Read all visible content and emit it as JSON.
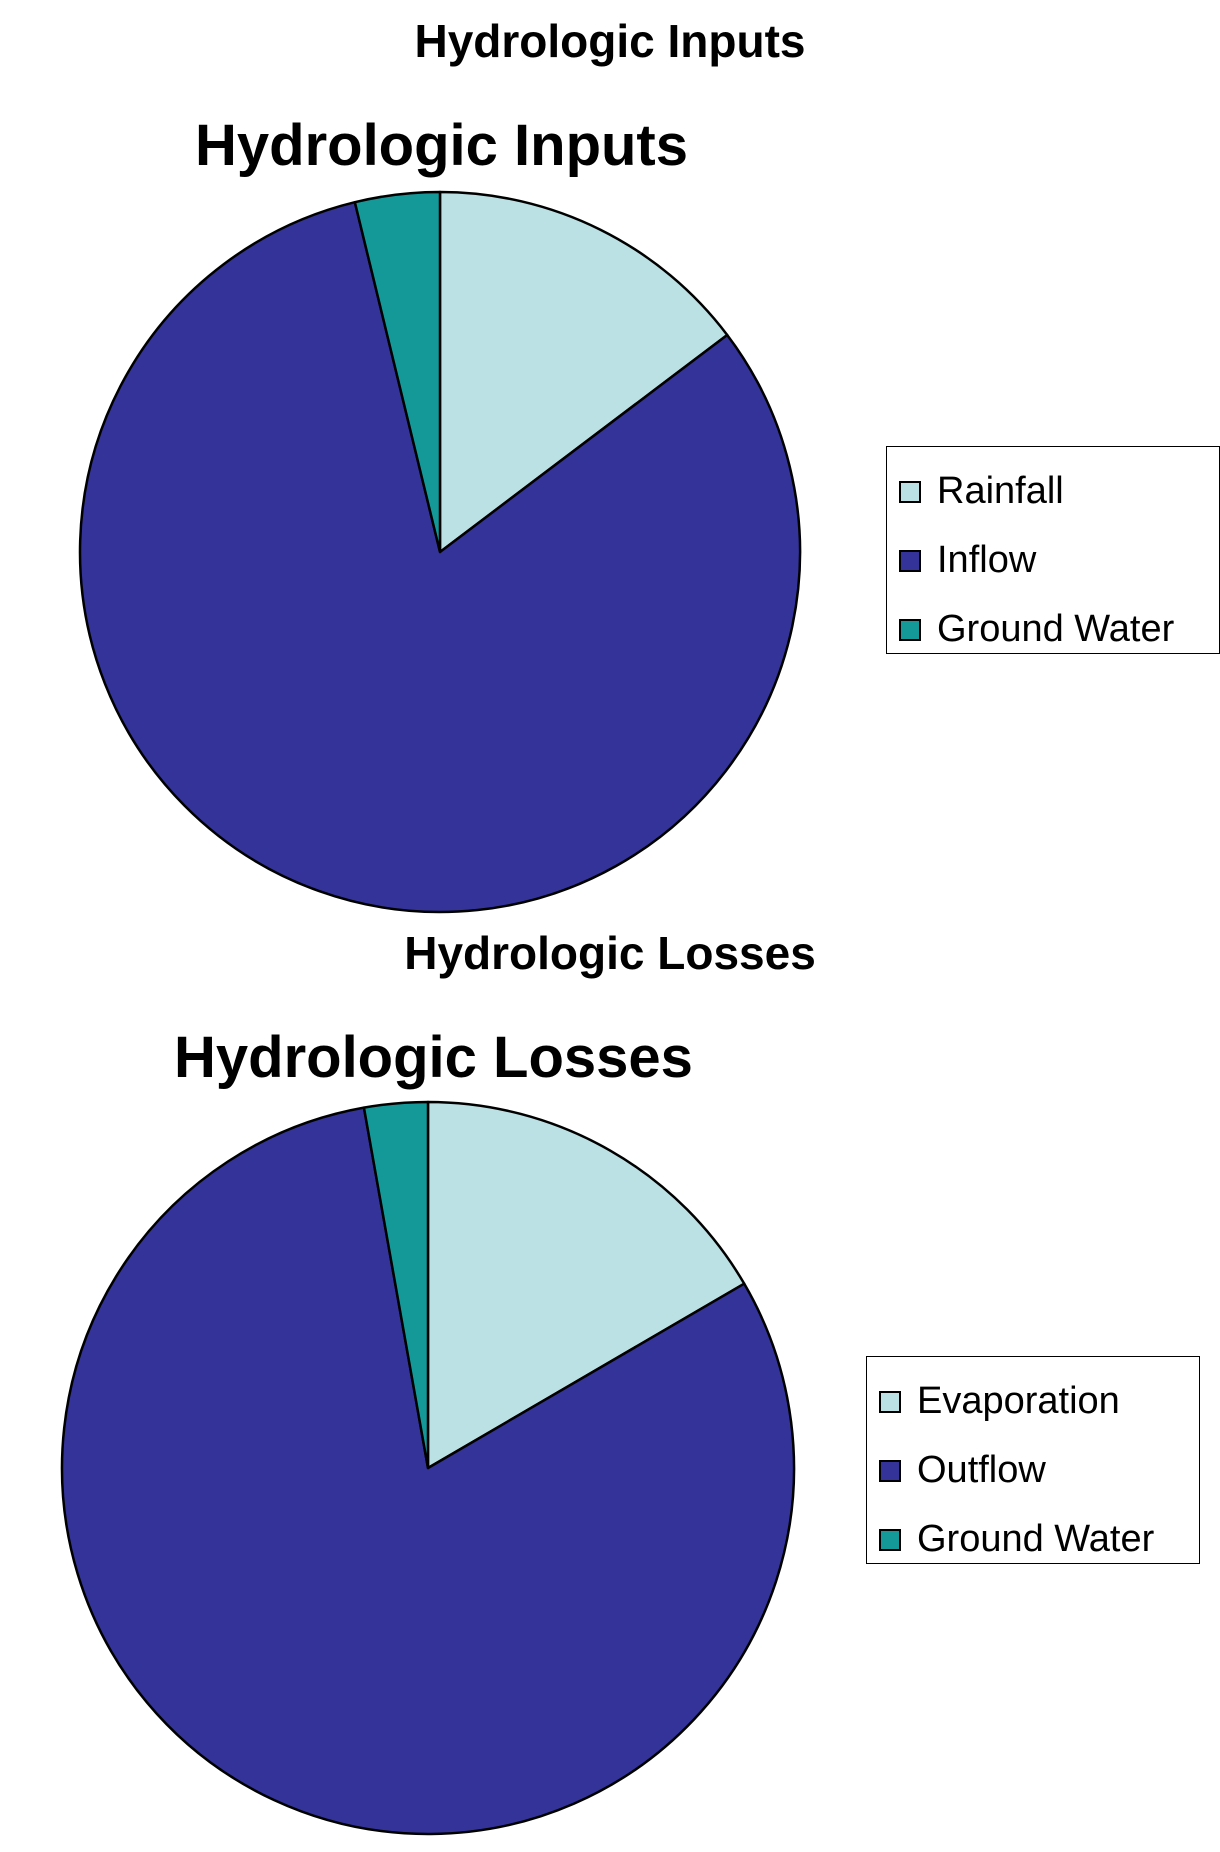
{
  "page": {
    "top_title": "Hydrologic Inputs",
    "middle_title": "Hydrologic Losses"
  },
  "chart_data": [
    {
      "type": "pie",
      "title": "Hydrologic Inputs",
      "start_angle_deg": 0,
      "direction": "clockwise",
      "slices": [
        {
          "label": "Rainfall",
          "value": 14.7,
          "color": "#BCE1E4"
        },
        {
          "label": "Inflow",
          "value": 81.5,
          "color": "#333399"
        },
        {
          "label": "Ground Water",
          "value": 3.8,
          "color": "#159998"
        }
      ],
      "legend": [
        "Rainfall",
        "Inflow",
        "Ground Water"
      ],
      "legend_position": "right"
    },
    {
      "type": "pie",
      "title": "Hydrologic Losses",
      "start_angle_deg": 0,
      "direction": "clockwise",
      "slices": [
        {
          "label": "Evaporation",
          "value": 16.6,
          "color": "#BCE1E4"
        },
        {
          "label": "Outflow",
          "value": 80.6,
          "color": "#333399"
        },
        {
          "label": "Ground Water",
          "value": 2.8,
          "color": "#159998"
        }
      ],
      "legend": [
        "Evaporation",
        "Outflow",
        "Ground Water"
      ],
      "legend_position": "right"
    }
  ]
}
